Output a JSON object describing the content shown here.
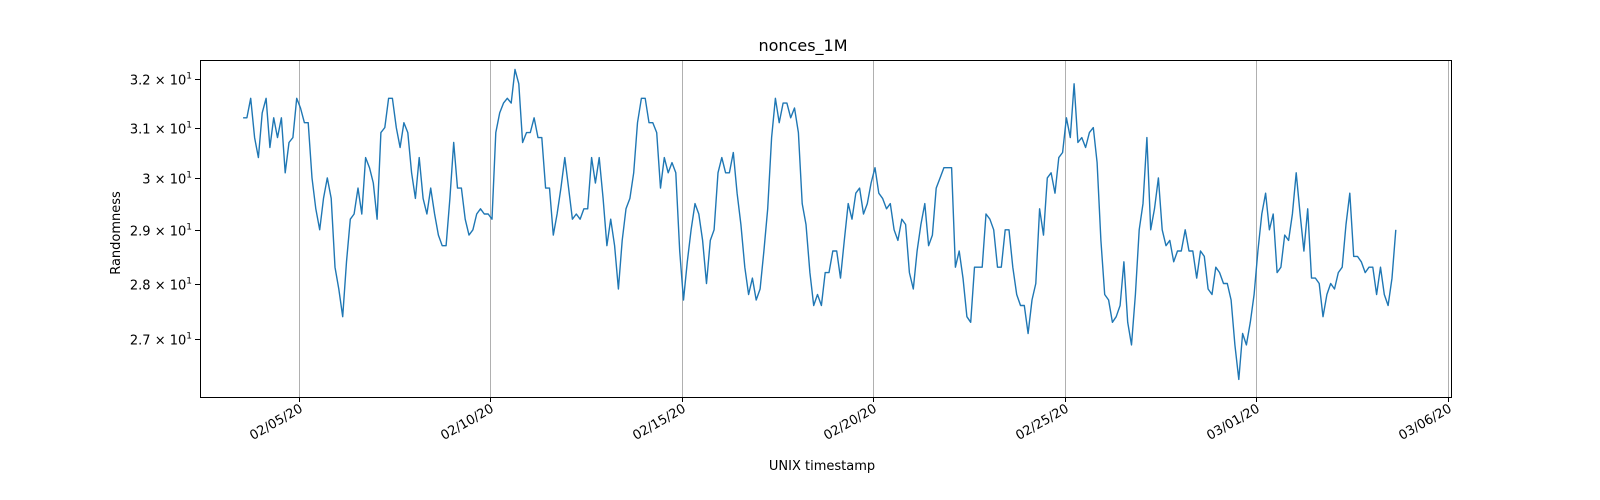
{
  "chart_data": {
    "type": "line",
    "title": "nonces_1M",
    "xlabel": "UNIX timestamp",
    "ylabel": "Randomness",
    "xlim": [
      "2020-02-02T10:00",
      "2020-03-06T02:00"
    ],
    "ylim": [
      26.0,
      32.4
    ],
    "y_scale": "log",
    "grid": "vertical",
    "x_ticks": [
      {
        "date": "2020-02-05",
        "label": "02/05/20"
      },
      {
        "date": "2020-02-10",
        "label": "02/10/20"
      },
      {
        "date": "2020-02-15",
        "label": "02/15/20"
      },
      {
        "date": "2020-02-20",
        "label": "02/20/20"
      },
      {
        "date": "2020-02-25",
        "label": "02/25/20"
      },
      {
        "date": "2020-03-01",
        "label": "03/01/20"
      },
      {
        "date": "2020-03-06",
        "label": "03/06/20"
      }
    ],
    "y_ticks": [
      {
        "value": 27,
        "base": "2.7 × 10",
        "exp": "1"
      },
      {
        "value": 28,
        "base": "2.8 × 10",
        "exp": "1"
      },
      {
        "value": 29,
        "base": "2.9 × 10",
        "exp": "1"
      },
      {
        "value": 30,
        "base": "3 × 10",
        "exp": "1"
      },
      {
        "value": 31,
        "base": "3.1 × 10",
        "exp": "1"
      },
      {
        "value": 32,
        "base": "3.2 × 10",
        "exp": "1"
      }
    ],
    "series": [
      {
        "color": "#1f77b4",
        "x_start": "2020-02-03T13:00",
        "x_step_hours": 2.4,
        "values": [
          31.2,
          31.2,
          31.6,
          30.8,
          30.4,
          31.3,
          31.6,
          30.6,
          31.2,
          30.8,
          31.2,
          30.1,
          30.7,
          30.8,
          31.6,
          31.4,
          31.1,
          31.1,
          30.0,
          29.4,
          29.0,
          29.6,
          30.0,
          29.6,
          28.3,
          27.9,
          27.4,
          28.4,
          29.2,
          29.3,
          29.8,
          29.3,
          30.4,
          30.2,
          29.9,
          29.2,
          30.9,
          31.0,
          31.6,
          31.6,
          31.0,
          30.6,
          31.1,
          30.9,
          30.1,
          29.6,
          30.4,
          29.6,
          29.3,
          29.8,
          29.3,
          28.9,
          28.7,
          28.7,
          29.6,
          30.7,
          29.8,
          29.8,
          29.2,
          28.9,
          29.0,
          29.3,
          29.4,
          29.3,
          29.3,
          29.2,
          30.9,
          31.3,
          31.5,
          31.6,
          31.5,
          32.2,
          31.9,
          30.7,
          30.9,
          30.9,
          31.2,
          30.8,
          30.8,
          29.8,
          29.8,
          28.9,
          29.3,
          29.8,
          30.4,
          29.8,
          29.2,
          29.3,
          29.2,
          29.4,
          29.4,
          30.4,
          29.9,
          30.4,
          29.6,
          28.7,
          29.2,
          28.7,
          27.9,
          28.8,
          29.4,
          29.6,
          30.1,
          31.1,
          31.6,
          31.6,
          31.1,
          31.1,
          30.9,
          29.8,
          30.4,
          30.1,
          30.3,
          30.1,
          28.6,
          27.7,
          28.4,
          29.0,
          29.5,
          29.3,
          28.8,
          28.0,
          28.8,
          29.0,
          30.1,
          30.4,
          30.1,
          30.1,
          30.5,
          29.7,
          29.1,
          28.3,
          27.8,
          28.1,
          27.7,
          27.9,
          28.6,
          29.4,
          30.8,
          31.6,
          31.1,
          31.5,
          31.5,
          31.2,
          31.4,
          30.9,
          29.5,
          29.1,
          28.2,
          27.6,
          27.8,
          27.6,
          28.2,
          28.2,
          28.6,
          28.6,
          28.1,
          28.8,
          29.5,
          29.2,
          29.7,
          29.8,
          29.3,
          29.5,
          29.9,
          30.2,
          29.7,
          29.6,
          29.4,
          29.5,
          29.0,
          28.8,
          29.2,
          29.1,
          28.2,
          27.9,
          28.6,
          29.1,
          29.5,
          28.7,
          28.9,
          29.8,
          30.0,
          30.2,
          30.2,
          30.2,
          28.3,
          28.6,
          28.1,
          27.4,
          27.3,
          28.3,
          28.3,
          28.3,
          29.3,
          29.2,
          29.0,
          28.3,
          28.3,
          29.0,
          29.0,
          28.3,
          27.8,
          27.6,
          27.6,
          27.1,
          27.7,
          28.0,
          29.4,
          28.9,
          30.0,
          30.1,
          29.7,
          30.4,
          30.5,
          31.2,
          30.8,
          31.9,
          30.7,
          30.8,
          30.6,
          30.9,
          31.0,
          30.3,
          28.8,
          27.8,
          27.7,
          27.3,
          27.4,
          27.6,
          28.4,
          27.3,
          26.9,
          27.8,
          29.0,
          29.5,
          30.8,
          29.0,
          29.4,
          30.0,
          29.0,
          28.7,
          28.8,
          28.4,
          28.6,
          28.6,
          29.0,
          28.6,
          28.6,
          28.1,
          28.6,
          28.5,
          27.9,
          27.8,
          28.3,
          28.2,
          28.0,
          28.0,
          27.7,
          26.9,
          26.3,
          27.1,
          26.9,
          27.3,
          27.8,
          28.6,
          29.3,
          29.7,
          29.0,
          29.3,
          28.2,
          28.3,
          28.9,
          28.8,
          29.3,
          30.1,
          29.3,
          28.6,
          29.4,
          28.1,
          28.1,
          28.0,
          27.4,
          27.8,
          28.0,
          27.9,
          28.2,
          28.3,
          29.1,
          29.7,
          28.5,
          28.5,
          28.4,
          28.2,
          28.3,
          28.3,
          27.8,
          28.3,
          27.8,
          27.6,
          28.1,
          29.0
        ]
      }
    ]
  }
}
